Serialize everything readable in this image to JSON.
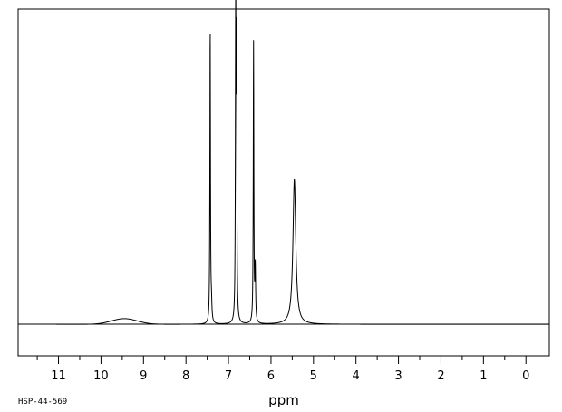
{
  "chart_data": {
    "type": "line",
    "title": "",
    "xlabel": "ppm",
    "ylabel": "",
    "sample_code": "HSP-44-569",
    "xlim": [
      11.95,
      -0.55
    ],
    "x_reversed": true,
    "ylim": [
      -0.1,
      1.0
    ],
    "grid": false,
    "major_ticks": [
      11,
      10,
      9,
      8,
      7,
      6,
      5,
      4,
      3,
      2,
      1,
      0
    ],
    "minor_ticks": [
      11.5,
      10.5,
      9.5,
      8.5,
      7.5,
      6.5,
      5.5,
      4.5,
      3.5,
      2.5,
      1.5,
      0.5
    ],
    "series": [
      {
        "baseline": 0,
        "peaks": [
          {
            "shift": 9.45,
            "height": 0.018,
            "width": 0.3,
            "shape": "gauss"
          },
          {
            "shift": 7.43,
            "height": 0.94,
            "width": 0.008,
            "shape": "lorentz"
          },
          {
            "shift": 7.4,
            "height": 0.05,
            "width": 0.012,
            "shape": "lorentz"
          },
          {
            "shift": 6.83,
            "height": 1.0,
            "width": 0.008,
            "shape": "lorentz"
          },
          {
            "shift": 6.81,
            "height": 0.87,
            "width": 0.008,
            "shape": "lorentz"
          },
          {
            "shift": 6.41,
            "height": 0.89,
            "width": 0.008,
            "shape": "lorentz"
          },
          {
            "shift": 6.37,
            "height": 0.17,
            "width": 0.01,
            "shape": "lorentz"
          },
          {
            "shift": 5.45,
            "height": 0.46,
            "width": 0.04,
            "shape": "lorentz"
          }
        ]
      }
    ]
  }
}
